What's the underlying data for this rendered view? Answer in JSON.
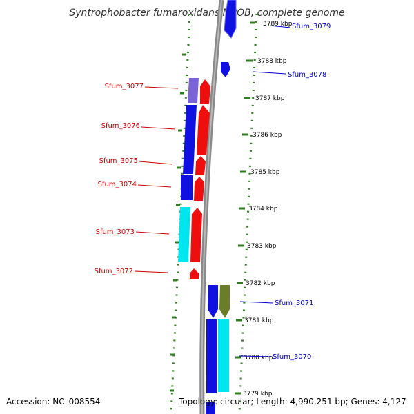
{
  "title": "Syntrophobacter fumaroxidans MPOB, complete genome",
  "footer": {
    "accession": "Accession: NC_008554",
    "topology": "Topology: circular; Length: 4,990,251 bp; Genes: 4,127"
  },
  "colors": {
    "tick_green": "#2e7d1e",
    "backbone_gray": "#8a8a8a",
    "forward_label": "#0000cc",
    "reverse_label": "#cc0000",
    "blue": "#1010e0",
    "red": "#ee0e0e",
    "cyan": "#00e6f0",
    "purple": "#7a64d8",
    "olive": "#6b7d28"
  },
  "ticks": [
    {
      "label": "3789 kbp"
    },
    {
      "label": "3788 kbp"
    },
    {
      "label": "3787 kbp"
    },
    {
      "label": "3786 kbp"
    },
    {
      "label": "3785 kbp"
    },
    {
      "label": "3784 kbp"
    },
    {
      "label": "3783 kbp"
    },
    {
      "label": "3782 kbp"
    },
    {
      "label": "3781 kbp"
    },
    {
      "label": "3780 kbp"
    },
    {
      "label": "3779 kbp"
    }
  ],
  "gene_labels": [
    {
      "id": "sfum-3079",
      "text": "Sfum_3079",
      "strand": "forward"
    },
    {
      "id": "sfum-3078",
      "text": "Sfum_3078",
      "strand": "forward"
    },
    {
      "id": "sfum-3077",
      "text": "Sfum_3077",
      "strand": "reverse"
    },
    {
      "id": "sfum-3076",
      "text": "Sfum_3076",
      "strand": "reverse"
    },
    {
      "id": "sfum-3075",
      "text": "Sfum_3075",
      "strand": "reverse"
    },
    {
      "id": "sfum-3074",
      "text": "Sfum_3074",
      "strand": "reverse"
    },
    {
      "id": "sfum-3073",
      "text": "Sfum_3073",
      "strand": "reverse"
    },
    {
      "id": "sfum-3072",
      "text": "Sfum_3072",
      "strand": "reverse"
    },
    {
      "id": "sfum-3071",
      "text": "Sfum_3071",
      "strand": "forward"
    },
    {
      "id": "sfum-3070",
      "text": "Sfum_3070",
      "strand": "forward"
    }
  ]
}
